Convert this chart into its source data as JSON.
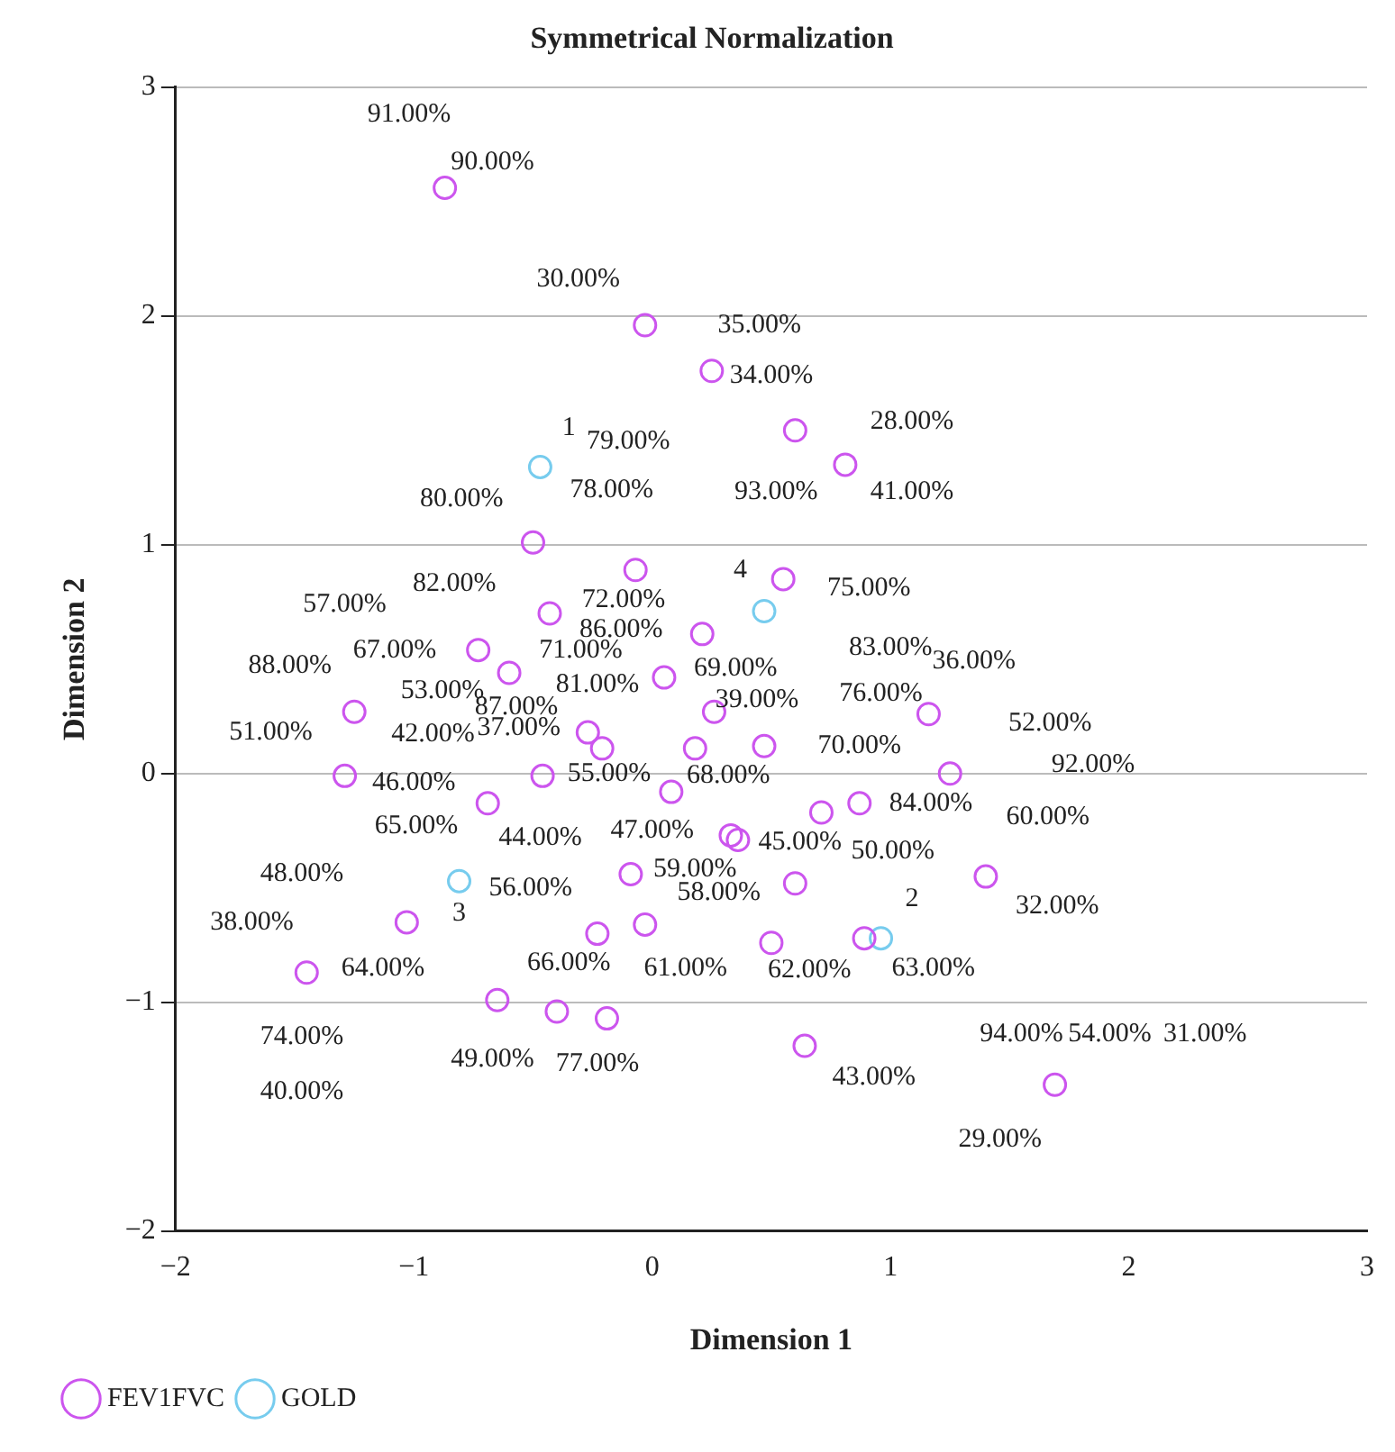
{
  "chart_data": {
    "type": "scatter",
    "title": "Symmetrical Normalization",
    "xlabel": "Dimension 1",
    "ylabel": "Dimension 2",
    "xlim": [
      -2,
      3
    ],
    "ylim": [
      -2,
      3
    ],
    "xticks": [
      -2,
      -1,
      0,
      1,
      2,
      3
    ],
    "yticks": [
      -2,
      -1,
      0,
      1,
      2,
      3
    ],
    "grid": "y",
    "legend": "bottom left",
    "marker": "circle",
    "series": [
      {
        "name": "FEV1FVC",
        "color": "#cc55ee",
        "x": [
          -0.87,
          -0.03,
          0.25,
          0.6,
          0.81,
          -0.5,
          -0.07,
          -0.43,
          0.55,
          -0.73,
          -0.6,
          0.21,
          0.05,
          -1.25,
          0.26,
          -0.27,
          -0.21,
          0.18,
          0.47,
          1.16,
          1.25,
          -1.29,
          -0.46,
          0.08,
          -0.69,
          0.71,
          0.87,
          0.33,
          0.36,
          -0.09,
          0.6,
          1.4,
          -1.03,
          -0.23,
          -0.03,
          0.5,
          0.89,
          -1.45,
          -0.65,
          -0.4,
          -0.19,
          0.64,
          1.69
        ],
        "values": [
          2.56,
          1.96,
          1.76,
          1.5,
          1.35,
          1.01,
          0.89,
          0.7,
          0.85,
          0.54,
          0.44,
          0.61,
          0.42,
          0.27,
          0.27,
          0.18,
          0.11,
          0.11,
          0.12,
          0.26,
          0.0,
          -0.01,
          -0.01,
          -0.08,
          -0.13,
          -0.17,
          -0.13,
          -0.27,
          -0.29,
          -0.44,
          -0.48,
          -0.45,
          -0.65,
          -0.7,
          -0.66,
          -0.74,
          -0.72,
          -0.87,
          -0.99,
          -1.04,
          -1.07,
          -1.19,
          -1.36
        ]
      },
      {
        "name": "GOLD",
        "color": "#77ccee",
        "x": [
          -0.47,
          0.47,
          -0.81,
          0.96
        ],
        "values": [
          1.34,
          0.71,
          -0.47,
          -0.72
        ]
      }
    ],
    "annotations": [
      "91.00%",
      "90.00%",
      "30.00%",
      "35.00%",
      "34.00%",
      "28.00%",
      "1",
      "79.00%",
      "78.00%",
      "80.00%",
      "93.00%",
      "41.00%",
      "4",
      "75.00%",
      "82.00%",
      "57.00%",
      "72.00%",
      "86.00%",
      "67.00%",
      "83.00%",
      "71.00%",
      "69.00%",
      "36.00%",
      "88.00%",
      "53.00%",
      "87.00%",
      "81.00%",
      "39.00%",
      "76.00%",
      "52.00%",
      "51.00%",
      "42.00%",
      "37.00%",
      "70.00%",
      "46.00%",
      "55.00%",
      "68.00%",
      "92.00%",
      "65.00%",
      "44.00%",
      "47.00%",
      "84.00%",
      "60.00%",
      "45.00%",
      "50.00%",
      "48.00%",
      "56.00%",
      "3",
      "59.00%",
      "58.00%",
      "32.00%",
      "2",
      "38.00%",
      "64.00%",
      "66.00%",
      "61.00%",
      "62.00%",
      "63.00%",
      "74.00%",
      "49.00%",
      "77.00%",
      "94.00%",
      "54.00%",
      "31.00%",
      "43.00%",
      "40.00%",
      "29.00%"
    ]
  }
}
